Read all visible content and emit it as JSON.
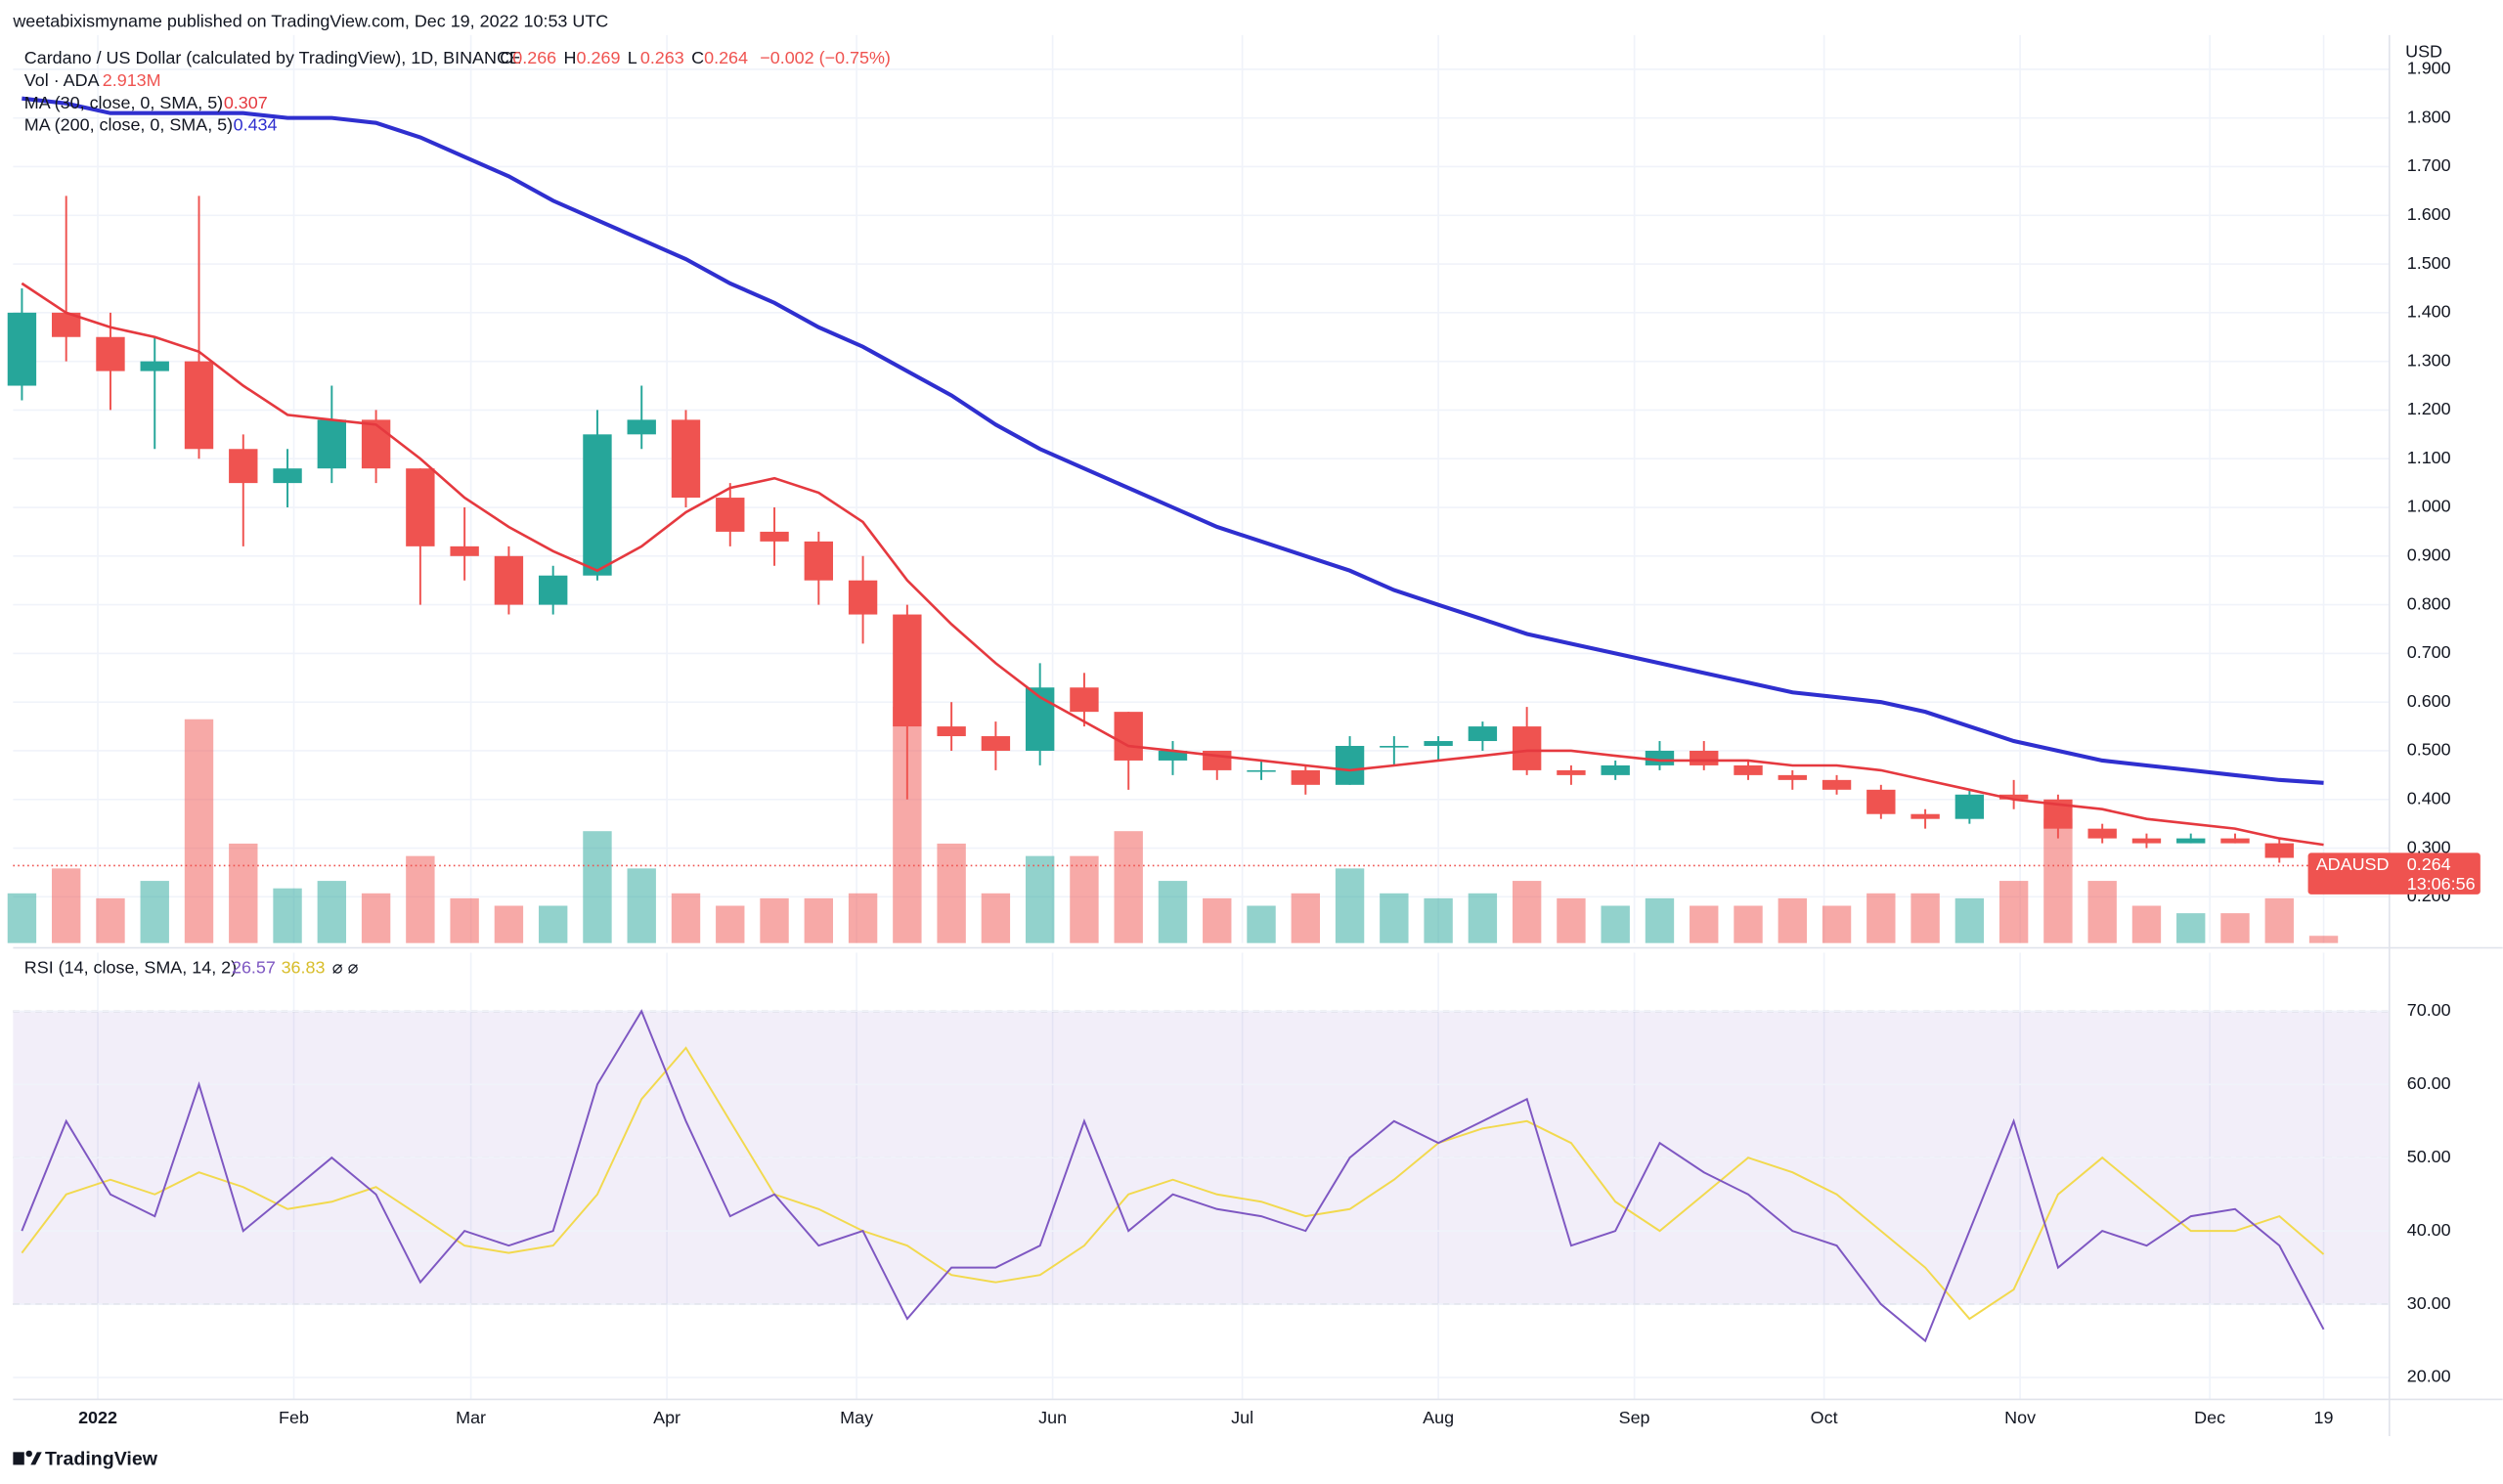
{
  "chart_data": {
    "type": "candlestick",
    "title": "weetabixismyname published on TradingView.com, Dec 19, 2022 10:53 UTC",
    "symbol_line": "Cardano / US Dollar (calculated by TradingView), 1D, BINANCE",
    "ohlc_letters": [
      "O",
      "H",
      "L",
      "C"
    ],
    "change": "−0.002 (−0.75%)",
    "y_axis_label": "USD",
    "last_price": {
      "symbol": "ADAUSD",
      "countdown": "13:06:56"
    },
    "footer": "TradingView",
    "x": [
      -12,
      -5,
      2,
      9,
      16,
      23,
      30,
      37,
      44,
      51,
      58,
      65,
      72,
      79,
      86,
      93,
      100,
      107,
      114,
      121,
      128,
      135,
      142,
      149,
      156,
      163,
      170,
      177,
      184,
      191,
      198,
      205,
      212,
      219,
      226,
      233,
      240,
      247,
      254,
      261,
      268,
      275,
      282,
      289,
      296,
      303,
      310,
      317,
      324,
      331,
      338,
      345,
      352
    ],
    "xlim": [
      -13.4,
      362.4
    ],
    "xticks": [
      {
        "value": 0,
        "label": "2022"
      },
      {
        "value": 31,
        "label": "Feb"
      },
      {
        "value": 59,
        "label": "Mar"
      },
      {
        "value": 90,
        "label": "Apr"
      },
      {
        "value": 120,
        "label": "May"
      },
      {
        "value": 151,
        "label": "Jun"
      },
      {
        "value": 181,
        "label": "Jul"
      },
      {
        "value": 212,
        "label": "Aug"
      },
      {
        "value": 243,
        "label": "Sep"
      },
      {
        "value": 273,
        "label": "Oct"
      },
      {
        "value": 304,
        "label": "Nov"
      },
      {
        "value": 334,
        "label": "Dec"
      },
      {
        "value": 352,
        "label": "19"
      }
    ],
    "ylim": [
      0.105,
      1.944
    ],
    "yticks": [
      {
        "value": 0.2,
        "label": "0.200"
      },
      {
        "value": 0.3,
        "label": "0.300"
      },
      {
        "value": 0.4,
        "label": "0.400"
      },
      {
        "value": 0.5,
        "label": "0.500"
      },
      {
        "value": 0.6,
        "label": "0.600"
      },
      {
        "value": 0.7,
        "label": "0.700"
      },
      {
        "value": 0.8,
        "label": "0.800"
      },
      {
        "value": 0.9,
        "label": "0.900"
      },
      {
        "value": 1.0,
        "label": "1.000"
      },
      {
        "value": 1.1,
        "label": "1.100"
      },
      {
        "value": 1.2,
        "label": "1.200"
      },
      {
        "value": 1.3,
        "label": "1.300"
      },
      {
        "value": 1.4,
        "label": "1.400"
      },
      {
        "value": 1.5,
        "label": "1.500"
      },
      {
        "value": 1.6,
        "label": "1.600"
      },
      {
        "value": 1.7,
        "label": "1.700"
      },
      {
        "value": 1.8,
        "label": "1.800"
      },
      {
        "value": 1.9,
        "label": "1.900"
      }
    ],
    "grid": true,
    "candles": {
      "up_color": "#26a69a",
      "down_color": "#ef5350",
      "open": [
        1.25,
        1.4,
        1.35,
        1.28,
        1.3,
        1.12,
        1.05,
        1.08,
        1.18,
        1.08,
        0.92,
        0.9,
        0.8,
        0.86,
        1.15,
        1.18,
        1.02,
        0.95,
        0.93,
        0.85,
        0.78,
        0.55,
        0.53,
        0.5,
        0.63,
        0.58,
        0.48,
        0.5,
        0.46,
        0.46,
        0.43,
        0.51,
        0.51,
        0.52,
        0.55,
        0.46,
        0.45,
        0.47,
        0.5,
        0.47,
        0.45,
        0.44,
        0.42,
        0.37,
        0.36,
        0.41,
        0.4,
        0.34,
        0.32,
        0.31,
        0.32,
        0.31,
        0.266
      ],
      "high": [
        1.45,
        1.64,
        1.4,
        1.35,
        1.64,
        1.15,
        1.12,
        1.25,
        1.2,
        1.08,
        1.0,
        0.92,
        0.88,
        1.2,
        1.25,
        1.2,
        1.05,
        1.0,
        0.95,
        0.9,
        0.8,
        0.6,
        0.56,
        0.68,
        0.66,
        0.58,
        0.52,
        0.5,
        0.48,
        0.47,
        0.53,
        0.53,
        0.53,
        0.56,
        0.59,
        0.47,
        0.48,
        0.52,
        0.52,
        0.48,
        0.46,
        0.45,
        0.43,
        0.38,
        0.42,
        0.44,
        0.41,
        0.35,
        0.33,
        0.33,
        0.33,
        0.32,
        0.269
      ],
      "low": [
        1.22,
        1.3,
        1.2,
        1.12,
        1.1,
        0.92,
        1.0,
        1.05,
        1.05,
        0.8,
        0.85,
        0.78,
        0.78,
        0.85,
        1.12,
        1.0,
        0.92,
        0.88,
        0.8,
        0.72,
        0.4,
        0.5,
        0.46,
        0.47,
        0.55,
        0.42,
        0.45,
        0.44,
        0.44,
        0.41,
        0.43,
        0.47,
        0.48,
        0.5,
        0.45,
        0.43,
        0.44,
        0.46,
        0.46,
        0.44,
        0.42,
        0.41,
        0.36,
        0.34,
        0.35,
        0.38,
        0.32,
        0.31,
        0.3,
        0.31,
        0.31,
        0.27,
        0.263
      ],
      "close": [
        1.4,
        1.35,
        1.28,
        1.3,
        1.12,
        1.05,
        1.08,
        1.18,
        1.08,
        0.92,
        0.9,
        0.8,
        0.86,
        1.15,
        1.18,
        1.02,
        0.95,
        0.93,
        0.85,
        0.78,
        0.55,
        0.53,
        0.5,
        0.63,
        0.58,
        0.48,
        0.5,
        0.46,
        0.46,
        0.43,
        0.51,
        0.51,
        0.52,
        0.55,
        0.46,
        0.45,
        0.47,
        0.5,
        0.47,
        0.45,
        0.44,
        0.42,
        0.37,
        0.36,
        0.41,
        0.4,
        0.34,
        0.32,
        0.31,
        0.32,
        0.31,
        0.28,
        0.264
      ]
    },
    "series": [
      {
        "name": "MA (30, close, 0, SMA, 5)",
        "color": "#e5393f",
        "values": [
          1.46,
          1.4,
          1.37,
          1.35,
          1.32,
          1.25,
          1.19,
          1.18,
          1.17,
          1.1,
          1.02,
          0.96,
          0.91,
          0.87,
          0.92,
          0.99,
          1.04,
          1.06,
          1.03,
          0.97,
          0.85,
          0.76,
          0.68,
          0.61,
          0.56,
          0.51,
          0.5,
          0.49,
          0.48,
          0.47,
          0.46,
          0.47,
          0.48,
          0.49,
          0.5,
          0.5,
          0.49,
          0.48,
          0.48,
          0.48,
          0.47,
          0.47,
          0.46,
          0.44,
          0.42,
          0.4,
          0.39,
          0.38,
          0.36,
          0.35,
          0.34,
          0.32,
          0.307
        ]
      },
      {
        "name": "MA (200, close, 0, SMA, 5)",
        "color": "#2f2fcf",
        "values": [
          1.84,
          1.83,
          1.81,
          1.81,
          1.81,
          1.81,
          1.8,
          1.8,
          1.79,
          1.76,
          1.72,
          1.68,
          1.63,
          1.59,
          1.55,
          1.51,
          1.46,
          1.42,
          1.37,
          1.33,
          1.28,
          1.23,
          1.17,
          1.12,
          1.08,
          1.04,
          1.0,
          0.96,
          0.93,
          0.9,
          0.87,
          0.83,
          0.8,
          0.77,
          0.74,
          0.72,
          0.7,
          0.68,
          0.66,
          0.64,
          0.62,
          0.61,
          0.6,
          0.58,
          0.55,
          0.52,
          0.5,
          0.48,
          0.47,
          0.46,
          0.45,
          0.44,
          0.434
        ]
      }
    ],
    "volume": {
      "name": "Vol · ADA",
      "last_label": "2.913M",
      "ylim": [
        0,
        360
      ],
      "values": [
        20,
        30,
        18,
        25,
        90,
        40,
        22,
        25,
        20,
        35,
        18,
        15,
        15,
        45,
        30,
        20,
        15,
        18,
        18,
        20,
        95,
        40,
        20,
        35,
        35,
        45,
        25,
        18,
        15,
        20,
        30,
        20,
        18,
        20,
        25,
        18,
        15,
        18,
        15,
        15,
        18,
        15,
        20,
        20,
        18,
        25,
        50,
        25,
        15,
        12,
        12,
        18,
        2.913
      ]
    },
    "rsi": {
      "name": "RSI (14, close, SMA, 14, 2)",
      "extra": "⌀ ⌀",
      "color": "#7e57c2",
      "values": [
        40,
        55,
        45,
        42,
        60,
        40,
        45,
        50,
        45,
        33,
        40,
        38,
        40,
        60,
        70,
        55,
        42,
        45,
        38,
        40,
        28,
        35,
        35,
        38,
        55,
        40,
        45,
        43,
        42,
        40,
        50,
        55,
        52,
        55,
        58,
        38,
        40,
        52,
        48,
        45,
        40,
        38,
        30,
        25,
        40,
        55,
        35,
        40,
        38,
        42,
        43,
        38,
        26.57
      ],
      "ma": {
        "color": "#f2d94e",
        "values": [
          37,
          45,
          47,
          45,
          48,
          46,
          43,
          44,
          46,
          42,
          38,
          37,
          38,
          45,
          58,
          65,
          55,
          45,
          43,
          40,
          38,
          34,
          33,
          34,
          38,
          45,
          47,
          45,
          44,
          42,
          43,
          47,
          52,
          54,
          55,
          52,
          44,
          40,
          45,
          50,
          48,
          45,
          40,
          35,
          28,
          32,
          45,
          50,
          45,
          40,
          40,
          42,
          36.83
        ]
      },
      "ylim": [
        17,
        78
      ],
      "yticks": [
        {
          "value": 20,
          "label": "20.00"
        },
        {
          "value": 30,
          "label": "30.00"
        },
        {
          "value": 40,
          "label": "40.00"
        },
        {
          "value": 50,
          "label": "50.00"
        },
        {
          "value": 60,
          "label": "60.00"
        },
        {
          "value": 70,
          "label": "70.00"
        }
      ],
      "levels": [
        30,
        50,
        70
      ]
    }
  }
}
